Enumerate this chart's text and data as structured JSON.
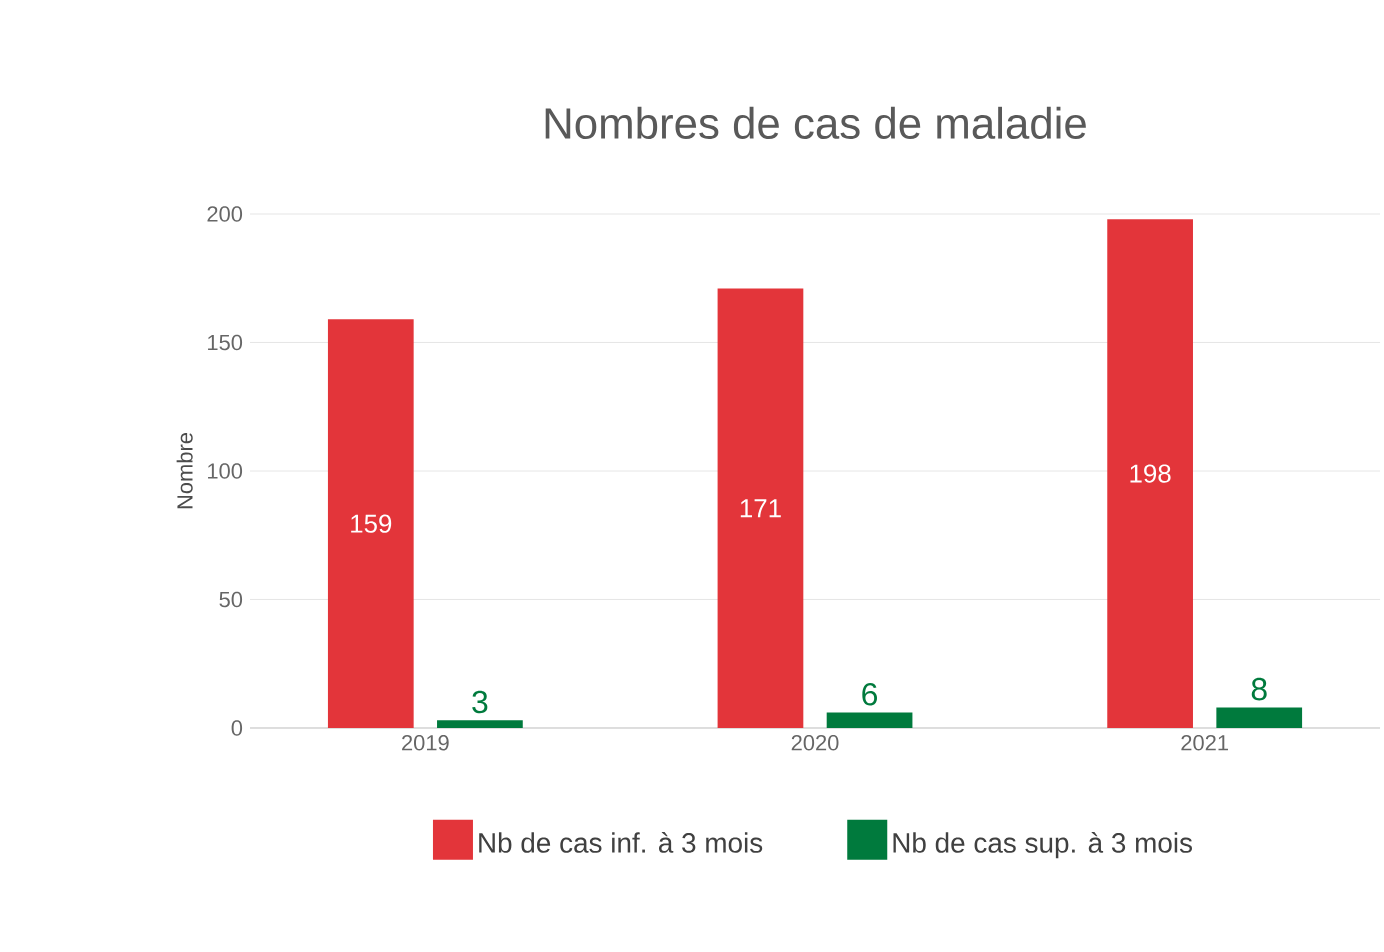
{
  "chart_data": {
    "type": "bar",
    "title": "Nombres de cas de maladie",
    "ylabel": "Nombre",
    "categories": [
      "2019",
      "2020",
      "2021"
    ],
    "series": [
      {
        "name": "Nb de cas inf. à 3 mois",
        "color": "#e3353a",
        "values": [
          159,
          171,
          198
        ]
      },
      {
        "name": "Nb de cas sup. à 3 mois",
        "color": "#007a3d",
        "values": [
          3,
          6,
          8
        ]
      }
    ],
    "ylim": [
      0,
      200
    ],
    "yticks": [
      0,
      50,
      100,
      150,
      200
    ],
    "grid": "y",
    "legend": "bottom",
    "data_labels": true
  }
}
